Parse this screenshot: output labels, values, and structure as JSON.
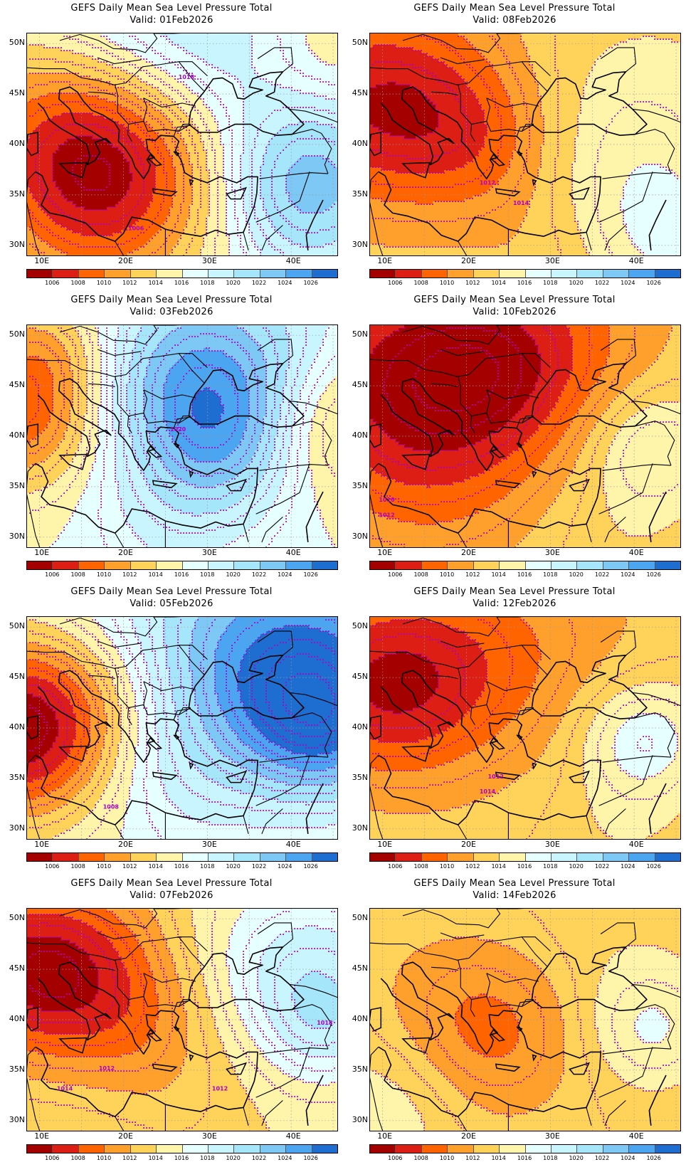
{
  "colorbar": {
    "colors": [
      "#a50000",
      "#dc1e14",
      "#ff6400",
      "#ffa02d",
      "#ffd25a",
      "#fff5aa",
      "#e6ffff",
      "#c8f5ff",
      "#a5e6fa",
      "#7dc8f5",
      "#4ba5f0",
      "#1e6ed2"
    ],
    "labels": [
      "1006",
      "1008",
      "1010",
      "1012",
      "1014",
      "1016",
      "1018",
      "1020",
      "1022",
      "1024",
      "1026"
    ]
  },
  "axes": {
    "lat_labels": [
      "50N",
      "45N",
      "40N",
      "35N",
      "30N"
    ],
    "lon_labels": [
      "10E",
      "20E",
      "30E",
      "40E"
    ]
  },
  "panels": [
    {
      "title": "GEFS Daily Mean Sea Level Pressure Total",
      "valid": "Valid: 01Feb2026",
      "contour_labels": [
        "1018",
        "1006"
      ],
      "regime": "deep low over Ionian / Italy, high to northeast"
    },
    {
      "title": "GEFS Daily Mean Sea Level Pressure Total",
      "valid": "Valid: 08Feb2026",
      "contour_labels": [
        "1012",
        "1014"
      ],
      "regime": "low over Adriatic / Italy"
    },
    {
      "title": "GEFS Daily Mean Sea Level Pressure Total",
      "valid": "Valid: 03Feb2026",
      "contour_labels": [
        "1020"
      ],
      "regime": "high over Black Sea and Balkans, low to west"
    },
    {
      "title": "GEFS Daily Mean Sea Level Pressure Total",
      "valid": "Valid: 10Feb2026",
      "contour_labels": [
        "1010",
        "1012"
      ],
      "regime": "broad low over central Europe / Balkans"
    },
    {
      "title": "GEFS Daily Mean Sea Level Pressure Total",
      "valid": "Valid: 05Feb2026",
      "contour_labels": [
        "1008"
      ],
      "regime": "low west over Italy, strong high over Black Sea"
    },
    {
      "title": "GEFS Daily Mean Sea Level Pressure Total",
      "valid": "Valid: 12Feb2026",
      "contour_labels": [
        "1012",
        "1014"
      ],
      "regime": "low northwest, weak high east"
    },
    {
      "title": "GEFS Daily Mean Sea Level Pressure Total",
      "valid": "Valid: 07Feb2026",
      "contour_labels": [
        "1012",
        "1014",
        "1012",
        "1018"
      ],
      "regime": "low northwest, high northeast"
    },
    {
      "title": "GEFS Daily Mean Sea Level Pressure Total",
      "valid": "Valid: 14Feb2026",
      "contour_labels": [],
      "regime": "weak low over Aegean, weak high east"
    }
  ]
}
